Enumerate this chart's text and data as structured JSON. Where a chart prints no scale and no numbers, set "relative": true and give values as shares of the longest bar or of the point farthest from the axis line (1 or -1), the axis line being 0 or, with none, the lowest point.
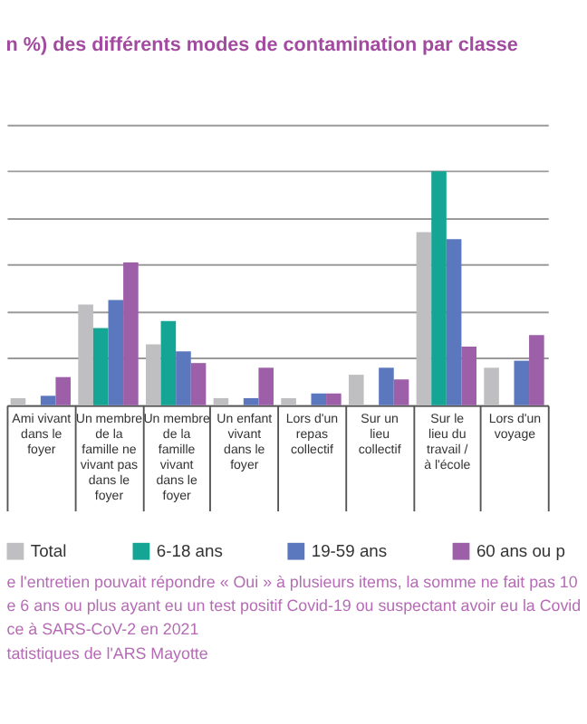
{
  "chart_data": {
    "type": "bar",
    "title": "n %) des différents modes de contamination par classe",
    "categories": [
      "Ami vivant dans le foyer",
      "Un membre de la famille ne vivant pas dans le foyer",
      "Un membre de la famille vivant dans le foyer",
      "Un enfant vivant dans le foyer",
      "Lors d'un repas collectif",
      "Sur un lieu collectif",
      "Sur le lieu du travail / à l'école",
      "Lors d'un voyage"
    ],
    "relative": true,
    "series": [
      {
        "name": "Total",
        "color": "#bfbfc1",
        "values": [
          0.03,
          0.43,
          0.26,
          0.03,
          0.03,
          0.13,
          0.74,
          0.16
        ]
      },
      {
        "name": "6-18 ans",
        "color": "#14a594",
        "values": [
          0,
          0.33,
          0.36,
          0,
          0,
          0,
          1,
          0
        ]
      },
      {
        "name": "19-59 ans",
        "color": "#5b77be",
        "values": [
          0.04,
          0.45,
          0.23,
          0.03,
          0.05,
          0.16,
          0.71,
          0.19
        ]
      },
      {
        "name": "60 ans ou p",
        "color": "#9d5fa8",
        "values": [
          0.12,
          0.61,
          0.18,
          0.16,
          0.05,
          0.11,
          0.25,
          0.3
        ]
      }
    ],
    "grid": "y",
    "legend": "bottom",
    "annotations": [
      "e l'entretien pouvait répondre « Oui » à plusieurs items, la somme ne fait pas 10",
      "e 6 ans ou plus ayant eu un test positif Covid-19 ou suspectant avoir eu la Covid",
      "ce à SARS-CoV-2 en 2021",
      "tatistiques de l'ARS Mayotte"
    ]
  }
}
